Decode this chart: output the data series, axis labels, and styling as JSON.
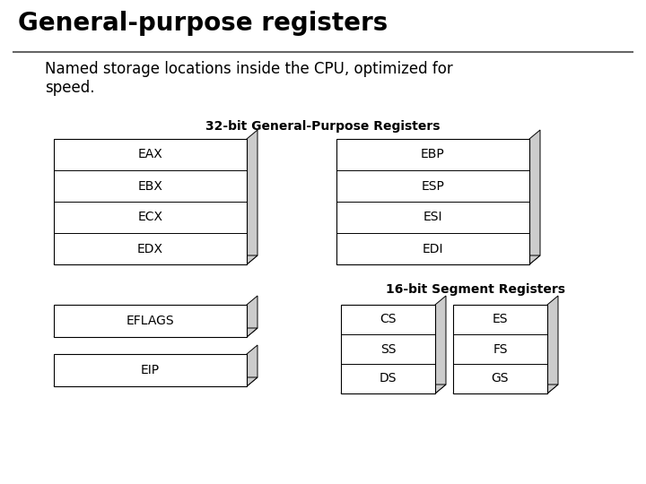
{
  "title": "General-purpose registers",
  "subtitle": "Named storage locations inside the CPU, optimized for\nspeed.",
  "bg_color": "#ffffff",
  "title_color": "#000000",
  "subtitle_color": "#000000",
  "title_fontsize": 20,
  "subtitle_fontsize": 12,
  "section1_title": "32-bit General-Purpose Registers",
  "section2_title": "16-bit Segment Registers",
  "section_title_fontsize": 10,
  "reg_fontsize": 10,
  "group1_left": [
    "EAX",
    "EBX",
    "ECX",
    "EDX"
  ],
  "group1_right": [
    "EBP",
    "ESP",
    "ESI",
    "EDI"
  ],
  "group2_left_single": [
    "EFLAGS",
    "EIP"
  ],
  "group2_mid": [
    "CS",
    "SS",
    "DS"
  ],
  "group2_right": [
    "ES",
    "FS",
    "GS"
  ],
  "box_face_color": "#ffffff",
  "box_edge_color": "#000000",
  "shadow_color": "#cccccc",
  "line_color": "#666666"
}
